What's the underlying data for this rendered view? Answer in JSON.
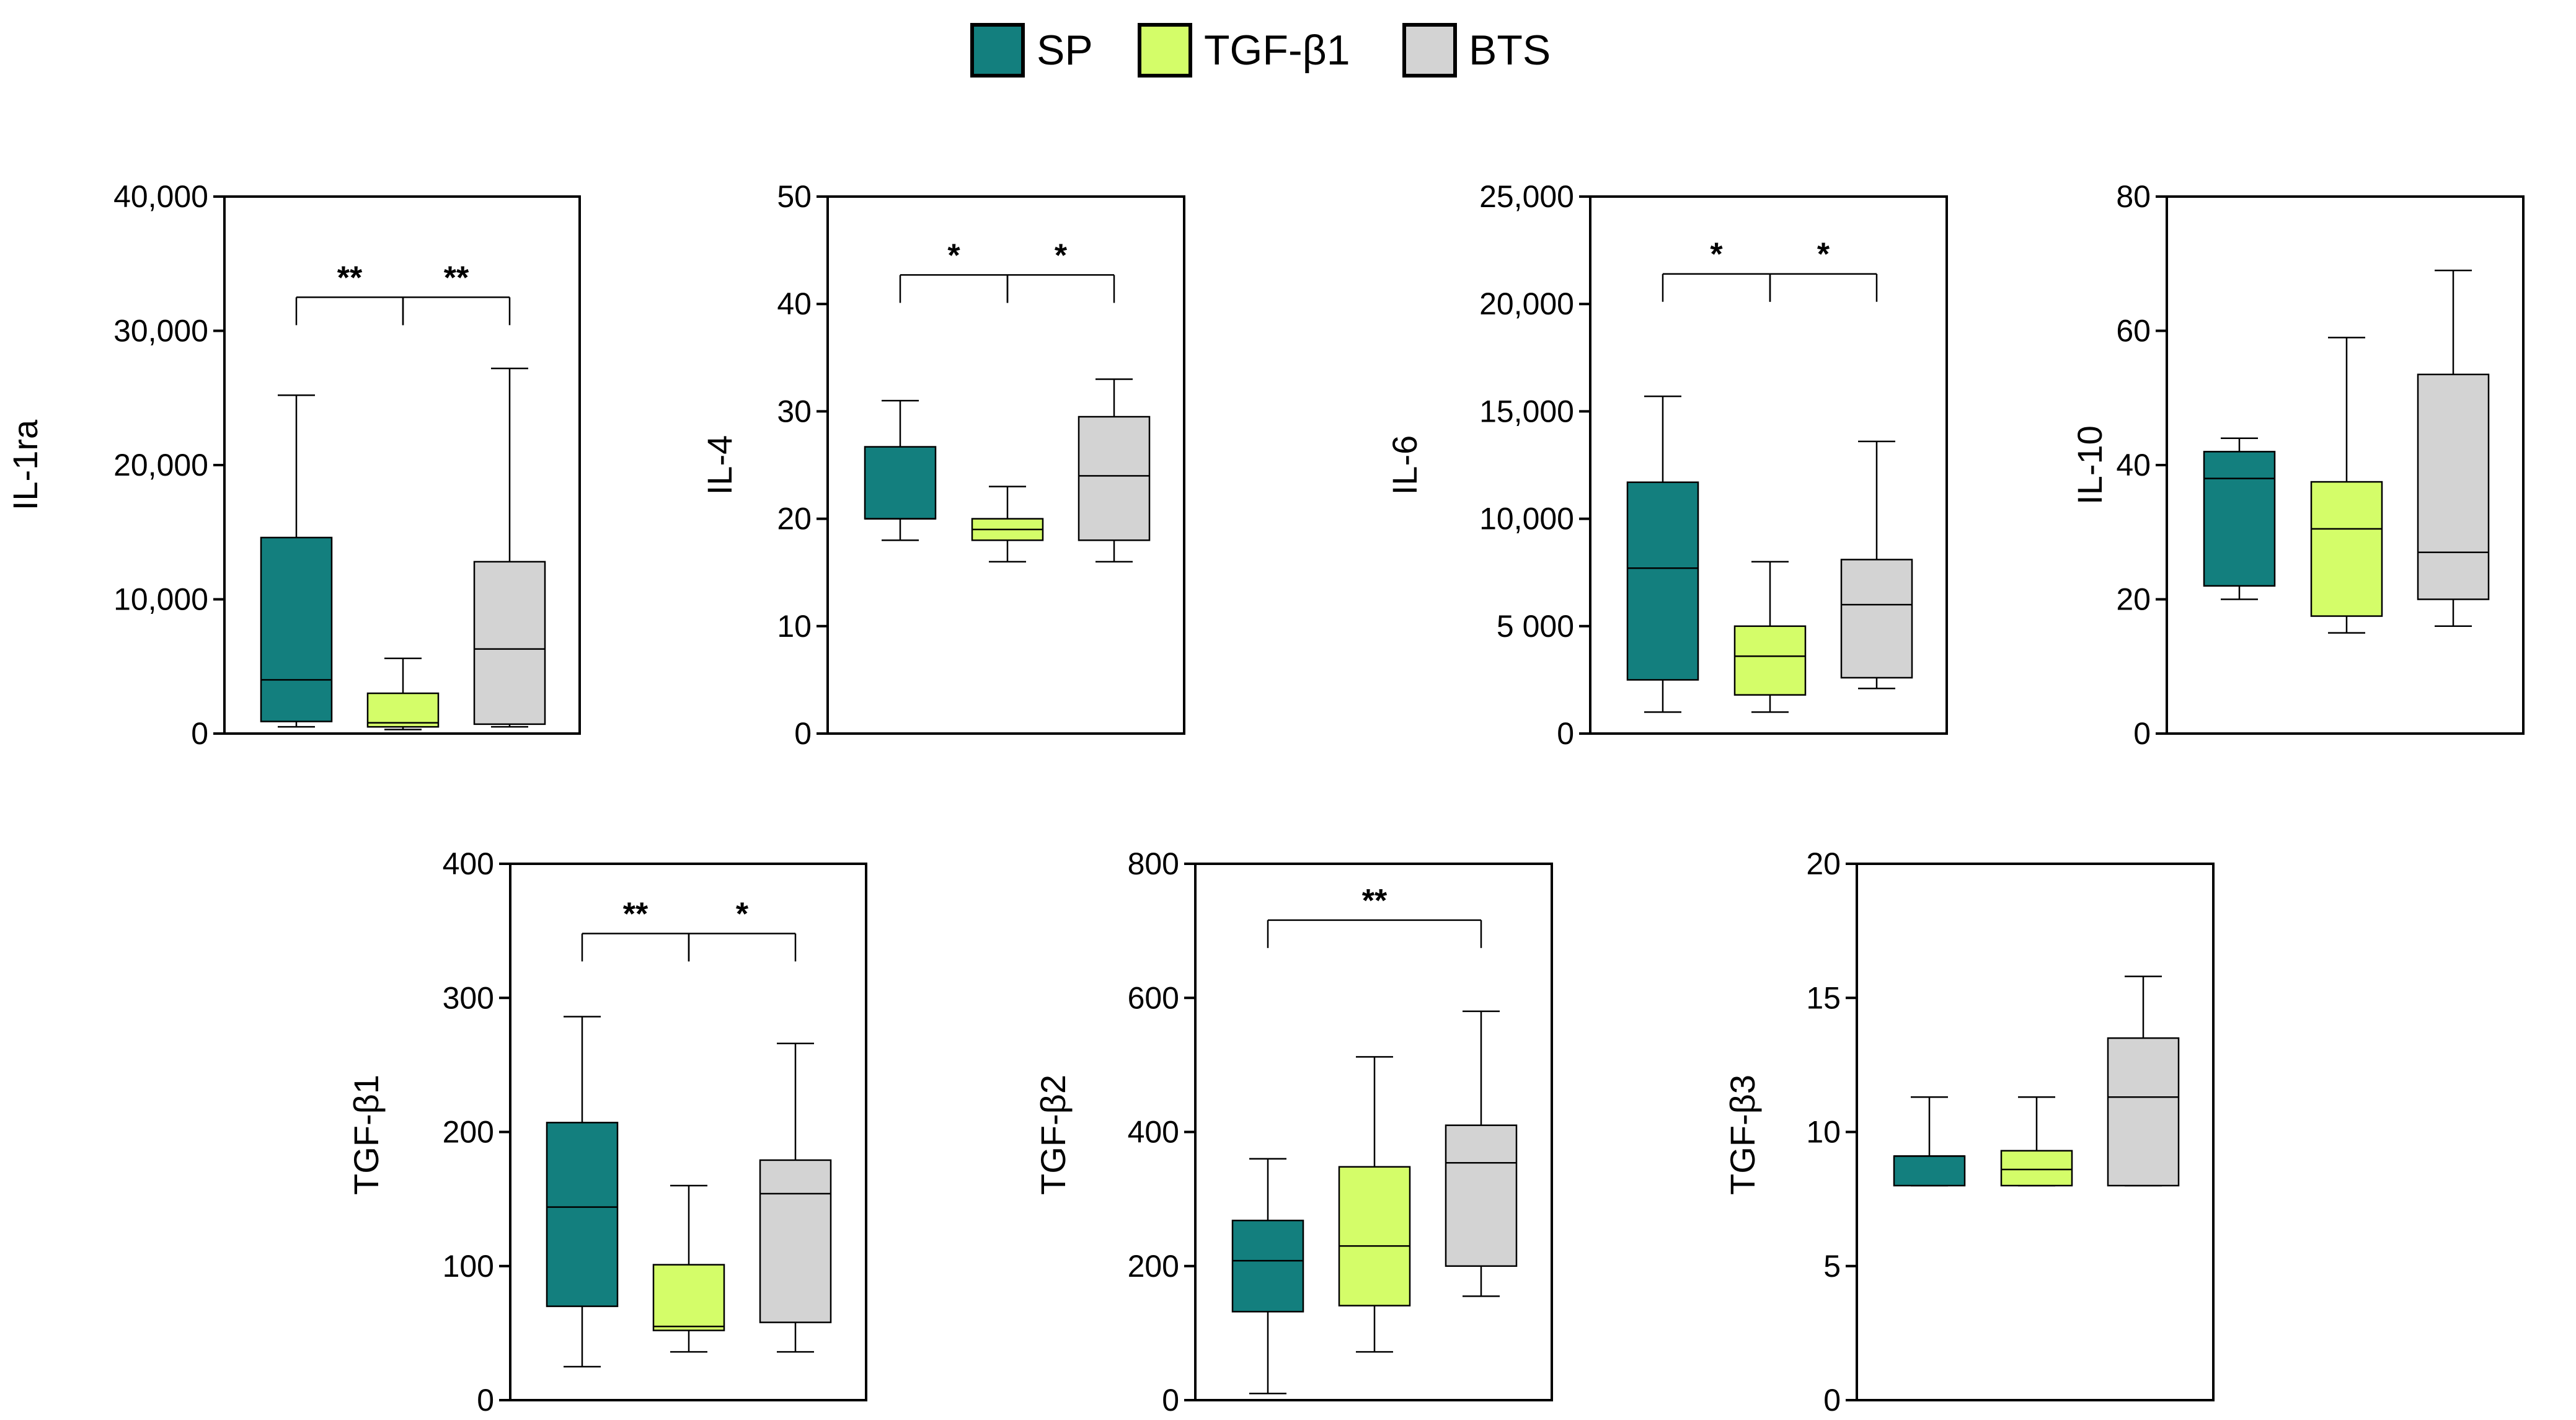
{
  "colors": {
    "SP": "#137f7e",
    "TGF-β1": "#d4fd69",
    "BTS": "#d3d3d3"
  },
  "legend": [
    "SP",
    "TGF-β1",
    "BTS"
  ],
  "chart_data": [
    {
      "type": "box",
      "ylabel": "IL-1ra",
      "ylim": [
        0,
        40000
      ],
      "yticks": [
        0,
        10000,
        20000,
        30000,
        40000
      ],
      "ytick_labels": [
        "0",
        "10,000",
        "20,000",
        "30,000",
        "40,000"
      ],
      "groups": [
        {
          "name": "SP",
          "min": 500,
          "q1": 900,
          "median": 4000,
          "q3": 14600,
          "max": 25200
        },
        {
          "name": "TGF-β1",
          "min": 300,
          "q1": 500,
          "median": 800,
          "q3": 3000,
          "max": 5600
        },
        {
          "name": "BTS",
          "min": 500,
          "q1": 700,
          "median": 6300,
          "q3": 12800,
          "max": 27200
        }
      ],
      "significance": [
        {
          "from": 0,
          "to": 1,
          "label": "**",
          "y": 32500,
          "top": 32500
        },
        {
          "from": 1,
          "to": 2,
          "label": "**",
          "y": 32500,
          "top": 32500
        }
      ]
    },
    {
      "type": "box",
      "ylabel": "IL-4",
      "ylim": [
        0,
        50
      ],
      "yticks": [
        0,
        10,
        20,
        30,
        40,
        50
      ],
      "ytick_labels": [
        "0",
        "10",
        "20",
        "30",
        "40",
        "50"
      ],
      "groups": [
        {
          "name": "SP",
          "min": 18,
          "q1": 20,
          "median": 20,
          "q3": 26.7,
          "max": 31
        },
        {
          "name": "TGF-β1",
          "min": 16,
          "q1": 18,
          "median": 19,
          "q3": 20,
          "max": 23
        },
        {
          "name": "BTS",
          "min": 16,
          "q1": 18,
          "median": 24,
          "q3": 29.5,
          "max": 33
        }
      ],
      "significance": [
        {
          "from": 0,
          "to": 1,
          "label": "*",
          "y": 42.7,
          "top": 42.7
        },
        {
          "from": 1,
          "to": 2,
          "label": "*",
          "y": 42.7,
          "top": 42.7
        }
      ]
    },
    {
      "type": "box",
      "ylabel": "IL-6",
      "ylim": [
        0,
        25000
      ],
      "yticks": [
        0,
        5000,
        10000,
        15000,
        20000,
        25000
      ],
      "ytick_labels": [
        "0",
        "5 000",
        "10,000",
        "15,000",
        "20,000",
        "25,000"
      ],
      "groups": [
        {
          "name": "SP",
          "min": 1000,
          "q1": 2500,
          "median": 7700,
          "q3": 11700,
          "max": 15700
        },
        {
          "name": "TGF-β1",
          "min": 1000,
          "q1": 1800,
          "median": 3600,
          "q3": 5000,
          "max": 8000
        },
        {
          "name": "BTS",
          "min": 2100,
          "q1": 2600,
          "median": 6000,
          "q3": 8100,
          "max": 13600
        }
      ],
      "significance": [
        {
          "from": 0,
          "to": 1,
          "label": "*",
          "y": 21400,
          "top": 21400
        },
        {
          "from": 1,
          "to": 2,
          "label": "*",
          "y": 21400,
          "top": 21400
        }
      ]
    },
    {
      "type": "box",
      "ylabel": "IL-10",
      "ylim": [
        0,
        80
      ],
      "yticks": [
        0,
        20,
        40,
        60,
        80
      ],
      "ytick_labels": [
        "0",
        "20",
        "40",
        "60",
        "80"
      ],
      "groups": [
        {
          "name": "SP",
          "min": 20,
          "q1": 22,
          "median": 38,
          "q3": 42,
          "max": 44
        },
        {
          "name": "TGF-β1",
          "min": 15,
          "q1": 17.5,
          "median": 30.5,
          "q3": 37.5,
          "max": 59
        },
        {
          "name": "BTS",
          "min": 16,
          "q1": 20,
          "median": 27,
          "q3": 53.5,
          "max": 69
        }
      ],
      "significance": []
    },
    {
      "type": "box",
      "ylabel": "TGF-β1",
      "ylim": [
        0,
        400
      ],
      "yticks": [
        0,
        100,
        200,
        300,
        400
      ],
      "ytick_labels": [
        "0",
        "100",
        "200",
        "300",
        "400"
      ],
      "groups": [
        {
          "name": "SP",
          "min": 25,
          "q1": 70,
          "median": 144,
          "q3": 207,
          "max": 286
        },
        {
          "name": "TGF-β1",
          "min": 36,
          "q1": 52,
          "median": 55,
          "q3": 101,
          "max": 160
        },
        {
          "name": "BTS",
          "min": 36,
          "q1": 58,
          "median": 154,
          "q3": 179,
          "max": 266
        }
      ],
      "significance": [
        {
          "from": 0,
          "to": 1,
          "label": "**",
          "y": 348,
          "top": 348
        },
        {
          "from": 1,
          "to": 2,
          "label": "*",
          "y": 348,
          "top": 348
        }
      ]
    },
    {
      "type": "box",
      "ylabel": "TGF-β2",
      "ylim": [
        0,
        800
      ],
      "yticks": [
        0,
        200,
        400,
        600,
        800
      ],
      "ytick_labels": [
        "0",
        "200",
        "400",
        "600",
        "800"
      ],
      "groups": [
        {
          "name": "SP",
          "min": 10,
          "q1": 132,
          "median": 208,
          "q3": 268,
          "max": 360
        },
        {
          "name": "TGF-β1",
          "min": 72,
          "q1": 141,
          "median": 230,
          "q3": 348,
          "max": 512
        },
        {
          "name": "BTS",
          "min": 155,
          "q1": 200,
          "median": 354,
          "q3": 410,
          "max": 580
        }
      ],
      "significance": [
        {
          "from": 0,
          "to": 2,
          "label": "**",
          "y": 716,
          "top": 716
        }
      ]
    },
    {
      "type": "box",
      "ylabel": "TGF-β3",
      "ylim": [
        0,
        20
      ],
      "yticks": [
        0,
        5,
        10,
        15,
        20
      ],
      "ytick_labels": [
        "0",
        "5",
        "10",
        "15",
        "20"
      ],
      "groups": [
        {
          "name": "SP",
          "min": 8,
          "q1": 8,
          "median": 9.1,
          "q3": 9.1,
          "max": 11.3
        },
        {
          "name": "TGF-β1",
          "min": 8,
          "q1": 8,
          "median": 8.6,
          "q3": 9.3,
          "max": 11.3
        },
        {
          "name": "BTS",
          "min": 8,
          "q1": 8,
          "median": 11.3,
          "q3": 13.5,
          "max": 15.8
        }
      ],
      "significance": []
    }
  ]
}
